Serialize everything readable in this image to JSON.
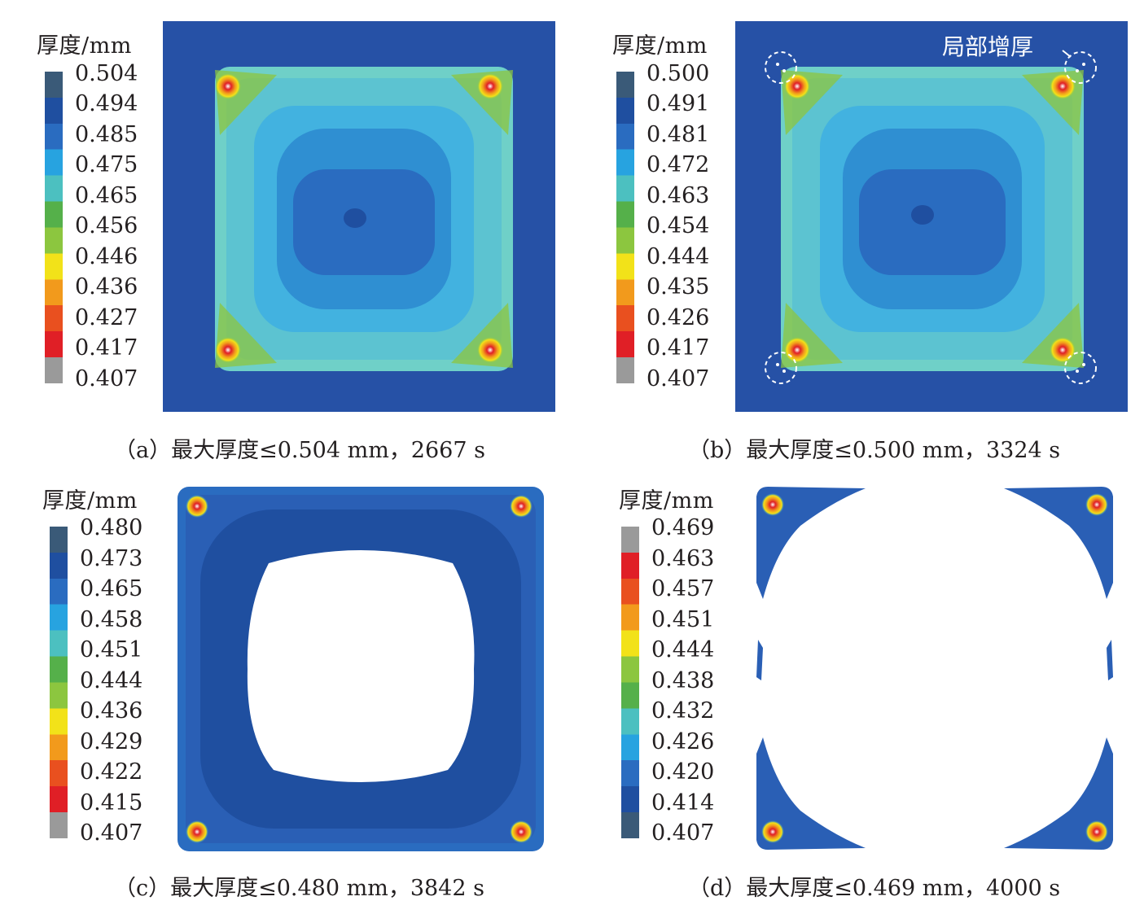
{
  "panels": [
    {
      "id": "a",
      "legend_title": "厚度/mm",
      "ticks": [
        "0.504",
        "0.494",
        "0.485",
        "0.475",
        "0.465",
        "0.456",
        "0.446",
        "0.436",
        "0.427",
        "0.417",
        "0.407"
      ],
      "caption": "（a）最大厚度≤0.504 mm，2667 s",
      "scale_order": "blue-top"
    },
    {
      "id": "b",
      "legend_title": "厚度/mm",
      "ticks": [
        "0.500",
        "0.491",
        "0.481",
        "0.472",
        "0.463",
        "0.454",
        "0.444",
        "0.435",
        "0.426",
        "0.417",
        "0.407"
      ],
      "caption": "（b）最大厚度≤0.500 mm，3324 s",
      "annotation": "局部增厚",
      "scale_order": "blue-top"
    },
    {
      "id": "c",
      "legend_title": "厚度/mm",
      "ticks": [
        "0.480",
        "0.473",
        "0.465",
        "0.458",
        "0.451",
        "0.444",
        "0.436",
        "0.429",
        "0.422",
        "0.415",
        "0.407"
      ],
      "caption": "（c）最大厚度≤0.480 mm，3842 s",
      "scale_order": "blue-top"
    },
    {
      "id": "d",
      "legend_title": "厚度/mm",
      "ticks": [
        "0.469",
        "0.463",
        "0.457",
        "0.451",
        "0.444",
        "0.438",
        "0.432",
        "0.426",
        "0.420",
        "0.414",
        "0.407"
      ],
      "caption": "（d）最大厚度≤0.469 mm，4000 s",
      "scale_order": "red-top"
    }
  ],
  "colors": {
    "scale_blue_to_red": [
      "#3a5a78",
      "#1f4fa0",
      "#2a6cc0",
      "#27a3e0",
      "#4cc0c0",
      "#55b04a",
      "#8cc63f",
      "#f2e219",
      "#f29a1c",
      "#e9501f",
      "#e01f26",
      "#9a9a9a"
    ],
    "background_blue": "#2651a6",
    "white_region": "#ffffff"
  }
}
